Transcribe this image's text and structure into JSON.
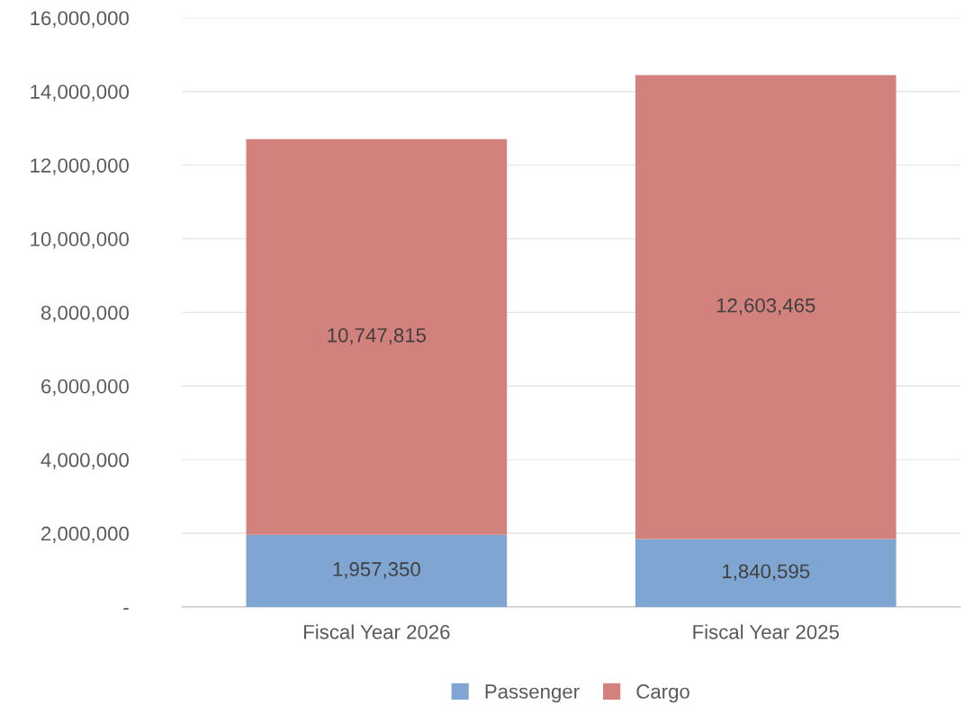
{
  "chart_data": {
    "type": "bar",
    "stacked": true,
    "categories": [
      "Fiscal Year 2026",
      "Fiscal Year 2025"
    ],
    "series": [
      {
        "name": "Passenger",
        "color": "#7fa6d2",
        "values": [
          1957350,
          1840595
        ],
        "value_labels": [
          "1,957,350",
          "1,840,595"
        ]
      },
      {
        "name": "Cargo",
        "color": "#d2817d",
        "values": [
          10747815,
          12603465
        ],
        "value_labels": [
          "10,747,815",
          "12,603,465"
        ]
      }
    ],
    "ylim": [
      0,
      16000000
    ],
    "yticks": [
      {
        "value": 0,
        "label": "-"
      },
      {
        "value": 2000000,
        "label": "2,000,000"
      },
      {
        "value": 4000000,
        "label": "4,000,000"
      },
      {
        "value": 6000000,
        "label": "6,000,000"
      },
      {
        "value": 8000000,
        "label": "8,000,000"
      },
      {
        "value": 10000000,
        "label": "10,000,000"
      },
      {
        "value": 12000000,
        "label": "12,000,000"
      },
      {
        "value": 14000000,
        "label": "14,000,000"
      },
      {
        "value": 16000000,
        "label": "16,000,000"
      }
    ],
    "grid": "y",
    "legend": "bottom"
  }
}
